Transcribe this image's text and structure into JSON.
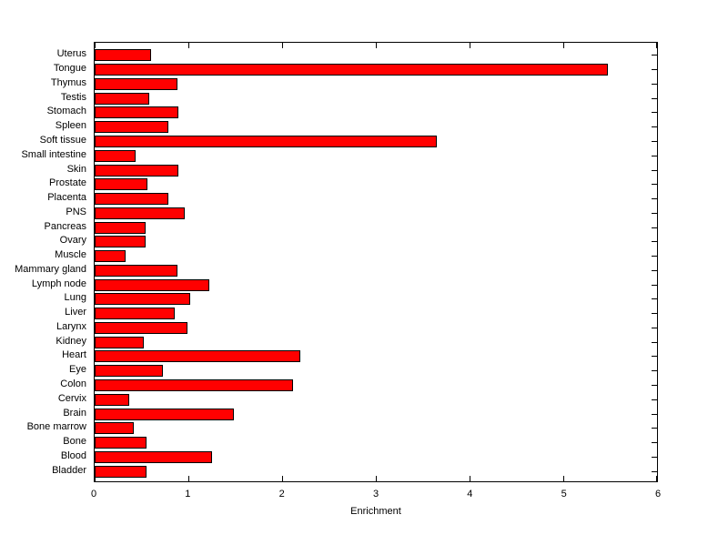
{
  "chart_data": {
    "type": "bar",
    "orientation": "horizontal",
    "title": "",
    "xlabel": "Enrichment",
    "ylabel": "",
    "xlim": [
      0,
      6
    ],
    "xticks": [
      0,
      1,
      2,
      3,
      4,
      5,
      6
    ],
    "grid": false,
    "legend": null,
    "bar_color": "#FF0000",
    "bar_edge_color": "#000000",
    "axis_color": "#000000",
    "background_color": "#FFFFFF",
    "categories": [
      "Uterus",
      "Tongue",
      "Thymus",
      "Testis",
      "Stomach",
      "Spleen",
      "Soft tissue",
      "Small intestine",
      "Skin",
      "Prostate",
      "Placenta",
      "PNS",
      "Pancreas",
      "Ovary",
      "Muscle",
      "Mammary gland",
      "Lymph node",
      "Lung",
      "Liver",
      "Larynx",
      "Kidney",
      "Heart",
      "Eye",
      "Colon",
      "Cervix",
      "Brain",
      "Bone marrow",
      "Bone",
      "Blood",
      "Bladder"
    ],
    "values": [
      0.6,
      5.48,
      0.88,
      0.58,
      0.89,
      0.79,
      3.65,
      0.44,
      0.89,
      0.56,
      0.79,
      0.96,
      0.54,
      0.54,
      0.33,
      0.88,
      1.22,
      1.02,
      0.85,
      0.99,
      0.52,
      2.19,
      0.73,
      2.12,
      0.37,
      1.49,
      0.42,
      0.55,
      1.25,
      0.55
    ]
  }
}
